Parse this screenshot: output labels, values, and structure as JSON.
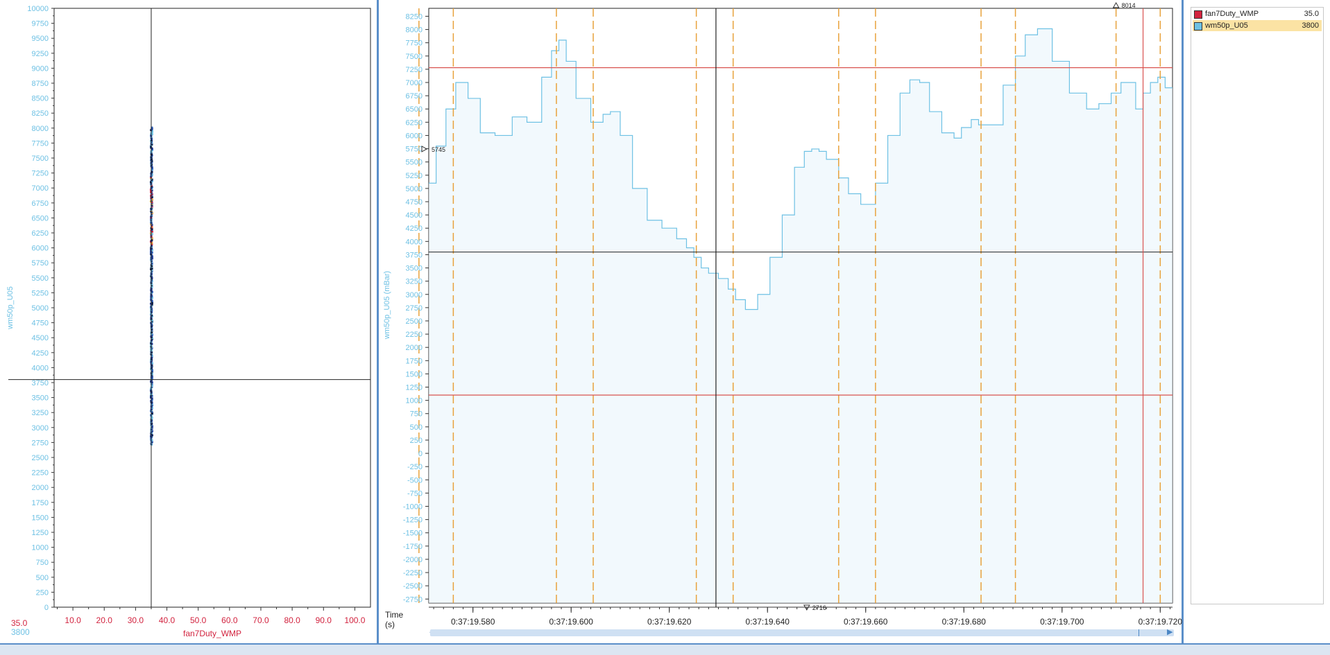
{
  "colors": {
    "series_red": "#d2233f",
    "series_blue": "#6ec1e4",
    "cursor_orange": "#e8a23c",
    "limit_red": "#d9534f",
    "crosshair": "#222222",
    "accent_panel": "#5b8fc9"
  },
  "legend": {
    "items": [
      {
        "name": "fan7Duty_WMP",
        "value": "35.0",
        "color": "#d2233f"
      },
      {
        "name": "wm50p_U05",
        "value": "3800",
        "color": "#6ec1e4",
        "selected": true
      }
    ]
  },
  "scatter_readout": {
    "x_value": "35.0",
    "y_value": "3800"
  },
  "marker_labels": {
    "left_marker": "5745",
    "top_marker": "8014",
    "bottom_marker": "2716"
  },
  "time_axis": {
    "caption_line1": "Time",
    "caption_line2": "(s)"
  },
  "chart_data": [
    {
      "type": "scatter",
      "xlabel": "fan7Duty_WMP",
      "ylabel": "wm50p_U05",
      "xlim": [
        4,
        105
      ],
      "ylim": [
        0,
        10000
      ],
      "x_ticks": [
        "10.0",
        "20.0",
        "30.0",
        "40.0",
        "50.0",
        "60.0",
        "70.0",
        "80.0",
        "90.0",
        "100.0"
      ],
      "y_ticks": [
        "0",
        "250",
        "500",
        "750",
        "1000",
        "1250",
        "1500",
        "1750",
        "2000",
        "2250",
        "2500",
        "2750",
        "3000",
        "3250",
        "3500",
        "3750",
        "4000",
        "4250",
        "4500",
        "4750",
        "5000",
        "5250",
        "5500",
        "5750",
        "6000",
        "6250",
        "6500",
        "6750",
        "7000",
        "7250",
        "7500",
        "7750",
        "8000",
        "8250",
        "8500",
        "8750",
        "9000",
        "9250",
        "9500",
        "9750",
        "10000"
      ],
      "crosshair": {
        "x": 35.0,
        "y": 3800
      },
      "points_x": 35.0,
      "points_y_range": [
        2716,
        8014
      ]
    },
    {
      "type": "line",
      "ylabel": "wm50p_U05 (mBar)",
      "xlabel": "Time (s)",
      "xlim": [
        19.571,
        19.7225
      ],
      "ylim": [
        -2825,
        8400
      ],
      "x_tick_values": [
        19.58,
        19.6,
        19.62,
        19.64,
        19.66,
        19.68,
        19.7,
        19.72
      ],
      "x_tick_labels": [
        "0:37:19.580",
        "0:37:19.600",
        "0:37:19.620",
        "0:37:19.640",
        "0:37:19.660",
        "0:37:19.680",
        "0:37:19.700",
        "0:37:19.720"
      ],
      "y_ticks": [
        "-2750",
        "-2500",
        "-2250",
        "-2000",
        "-1750",
        "-1500",
        "-1250",
        "-1000",
        "-750",
        "-500",
        "-250",
        "0",
        "250",
        "500",
        "750",
        "1000",
        "1250",
        "1500",
        "1750",
        "2000",
        "2250",
        "2500",
        "2750",
        "3000",
        "3250",
        "3500",
        "3750",
        "4000",
        "4250",
        "4500",
        "4750",
        "5000",
        "5250",
        "5500",
        "5750",
        "6000",
        "6250",
        "6500",
        "6750",
        "7000",
        "7250",
        "7500",
        "7750",
        "8000",
        "8250"
      ],
      "series": [
        {
          "name": "wm50p_U05",
          "step": true,
          "x": [
            19.571,
            19.5725,
            19.5745,
            19.5765,
            19.579,
            19.5815,
            19.5845,
            19.588,
            19.591,
            19.594,
            19.596,
            19.5975,
            19.599,
            19.601,
            19.604,
            19.6065,
            19.608,
            19.61,
            19.6125,
            19.6155,
            19.6185,
            19.6215,
            19.6235,
            19.625,
            19.6265,
            19.628,
            19.63,
            19.632,
            19.6335,
            19.6355,
            19.638,
            19.6405,
            19.643,
            19.6455,
            19.6475,
            19.649,
            19.6505,
            19.652,
            19.6545,
            19.6565,
            19.659,
            19.662,
            19.6645,
            19.667,
            19.669,
            19.671,
            19.673,
            19.6755,
            19.678,
            19.6795,
            19.6815,
            19.683,
            19.6855,
            19.688,
            19.6905,
            19.6925,
            19.695,
            19.698,
            19.7015,
            19.705,
            19.7075,
            19.71,
            19.712,
            19.7135,
            19.715,
            19.7165,
            19.718,
            19.7195,
            19.721,
            19.7225
          ],
          "y": [
            5100,
            5800,
            6500,
            7000,
            6700,
            6050,
            6000,
            6350,
            6250,
            7100,
            7600,
            7800,
            7400,
            6700,
            6250,
            6400,
            6450,
            6000,
            5000,
            4400,
            4250,
            4050,
            3880,
            3700,
            3500,
            3400,
            3300,
            3100,
            2900,
            2716,
            3000,
            3700,
            4500,
            5400,
            5700,
            5745,
            5700,
            5550,
            5200,
            4900,
            4700,
            5100,
            6000,
            6800,
            7050,
            7000,
            6450,
            6050,
            5950,
            6150,
            6300,
            6200,
            6200,
            6950,
            7500,
            7900,
            8014,
            7400,
            6800,
            6500,
            6600,
            6800,
            7000,
            7000,
            6500,
            6800,
            7000,
            7100,
            6900,
            6900
          ]
        }
      ],
      "horizontal_lines": {
        "crosshair_y": 3800,
        "upper_limit": 7280,
        "lower_limit": 1100
      },
      "cursor_x": 19.6295,
      "red_cursor_x": 19.7165,
      "orange_cursors_x": [
        19.569,
        19.576,
        19.597,
        19.6045,
        19.6255,
        19.633,
        19.6545,
        19.662,
        19.6835,
        19.6905,
        19.711,
        19.72
      ]
    }
  ]
}
